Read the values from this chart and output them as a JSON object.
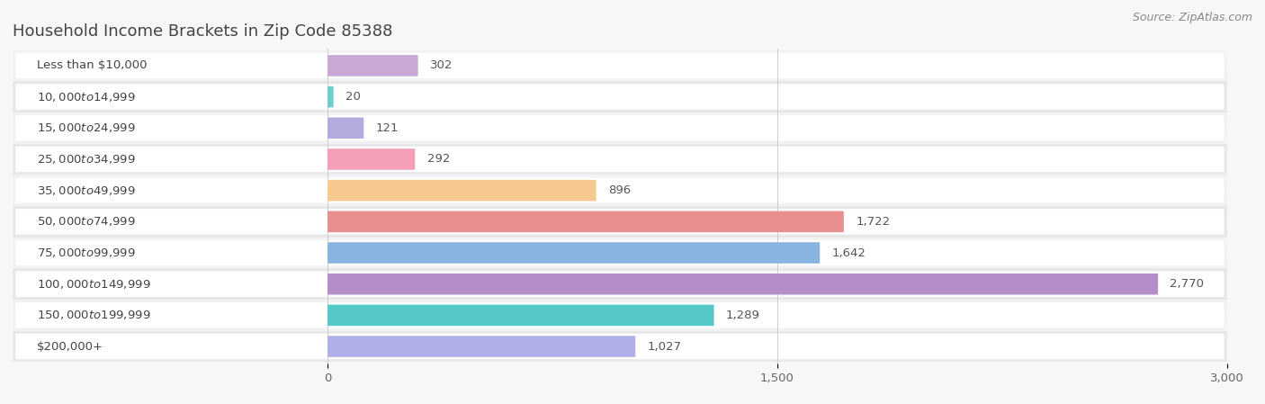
{
  "title": "Household Income Brackets in Zip Code 85388",
  "source": "Source: ZipAtlas.com",
  "categories": [
    "Less than $10,000",
    "$10,000 to $14,999",
    "$15,000 to $24,999",
    "$25,000 to $34,999",
    "$35,000 to $49,999",
    "$50,000 to $74,999",
    "$75,000 to $99,999",
    "$100,000 to $149,999",
    "$150,000 to $199,999",
    "$200,000+"
  ],
  "values": [
    302,
    20,
    121,
    292,
    896,
    1722,
    1642,
    2770,
    1289,
    1027
  ],
  "colors": [
    "#c8a8d5",
    "#6ecece",
    "#b3aade",
    "#f5a0b8",
    "#f6ca8e",
    "#e89090",
    "#88b4e2",
    "#b48eca",
    "#55c8c8",
    "#b0b0e8"
  ],
  "xlim": [
    0,
    3000
  ],
  "xticks": [
    0,
    1500,
    3000
  ],
  "background_color": "#f7f7f7",
  "row_bg_light": "#f2f2f2",
  "row_bg_dark": "#e8e8e8",
  "pill_color": "#ffffff",
  "title_fontsize": 13,
  "label_fontsize": 9.5,
  "value_fontsize": 9.5,
  "source_fontsize": 9
}
